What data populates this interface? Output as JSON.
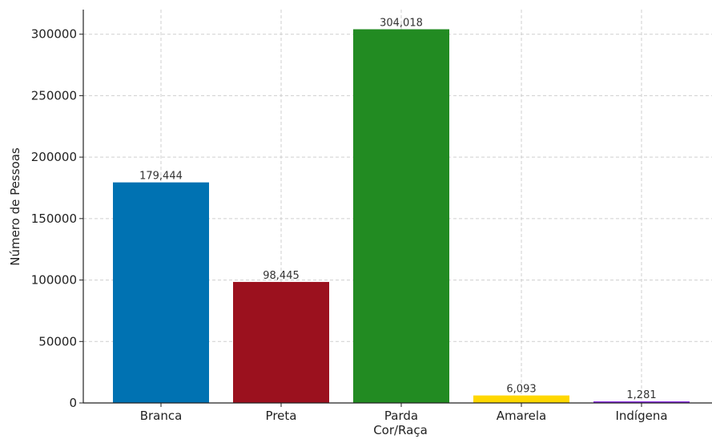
{
  "chart_data": {
    "type": "bar",
    "categories": [
      "Branca",
      "Preta",
      "Parda",
      "Amarela",
      "Indígena"
    ],
    "values": [
      179444,
      98445,
      304018,
      6093,
      1281
    ],
    "data_labels": [
      "179,444",
      "98,445",
      "304,018",
      "6,093",
      "1,281"
    ],
    "colors": [
      "#0072b2",
      "#9b111e",
      "#228b22",
      "#ffd700",
      "#8a2be2"
    ],
    "title": "",
    "xlabel": "Cor/Raça",
    "ylabel": "Número de Pessoas",
    "ylim": [
      0,
      320000
    ],
    "yticks": [
      0,
      50000,
      100000,
      150000,
      200000,
      250000,
      300000
    ],
    "ytick_labels": [
      "0",
      "50000",
      "100000",
      "150000",
      "200000",
      "250000",
      "300000"
    ],
    "grid": true
  }
}
